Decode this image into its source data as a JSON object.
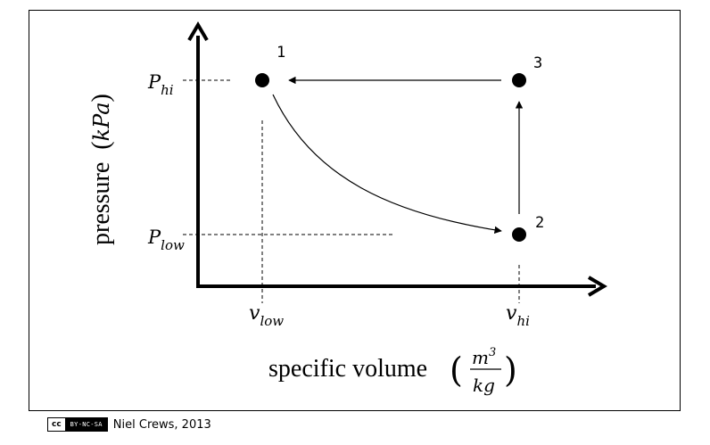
{
  "axes": {
    "y_label": "pressure",
    "y_unit": "kPa",
    "x_label": "specific volume",
    "x_unit_num": "m",
    "x_unit_num_exp": "3",
    "x_unit_den": "kg"
  },
  "ticks": {
    "p_hi": "P",
    "p_hi_sub": "hi",
    "p_low": "P",
    "p_low_sub": "low",
    "v_low": "v",
    "v_low_sub": "low",
    "v_hi": "v",
    "v_hi_sub": "hi"
  },
  "states": [
    {
      "label": "1"
    },
    {
      "label": "2"
    },
    {
      "label": "3"
    }
  ],
  "footer": {
    "license_logo": "cc",
    "license_terms": "BY-NC-SA",
    "author": "Niel Crews, 2013"
  }
}
